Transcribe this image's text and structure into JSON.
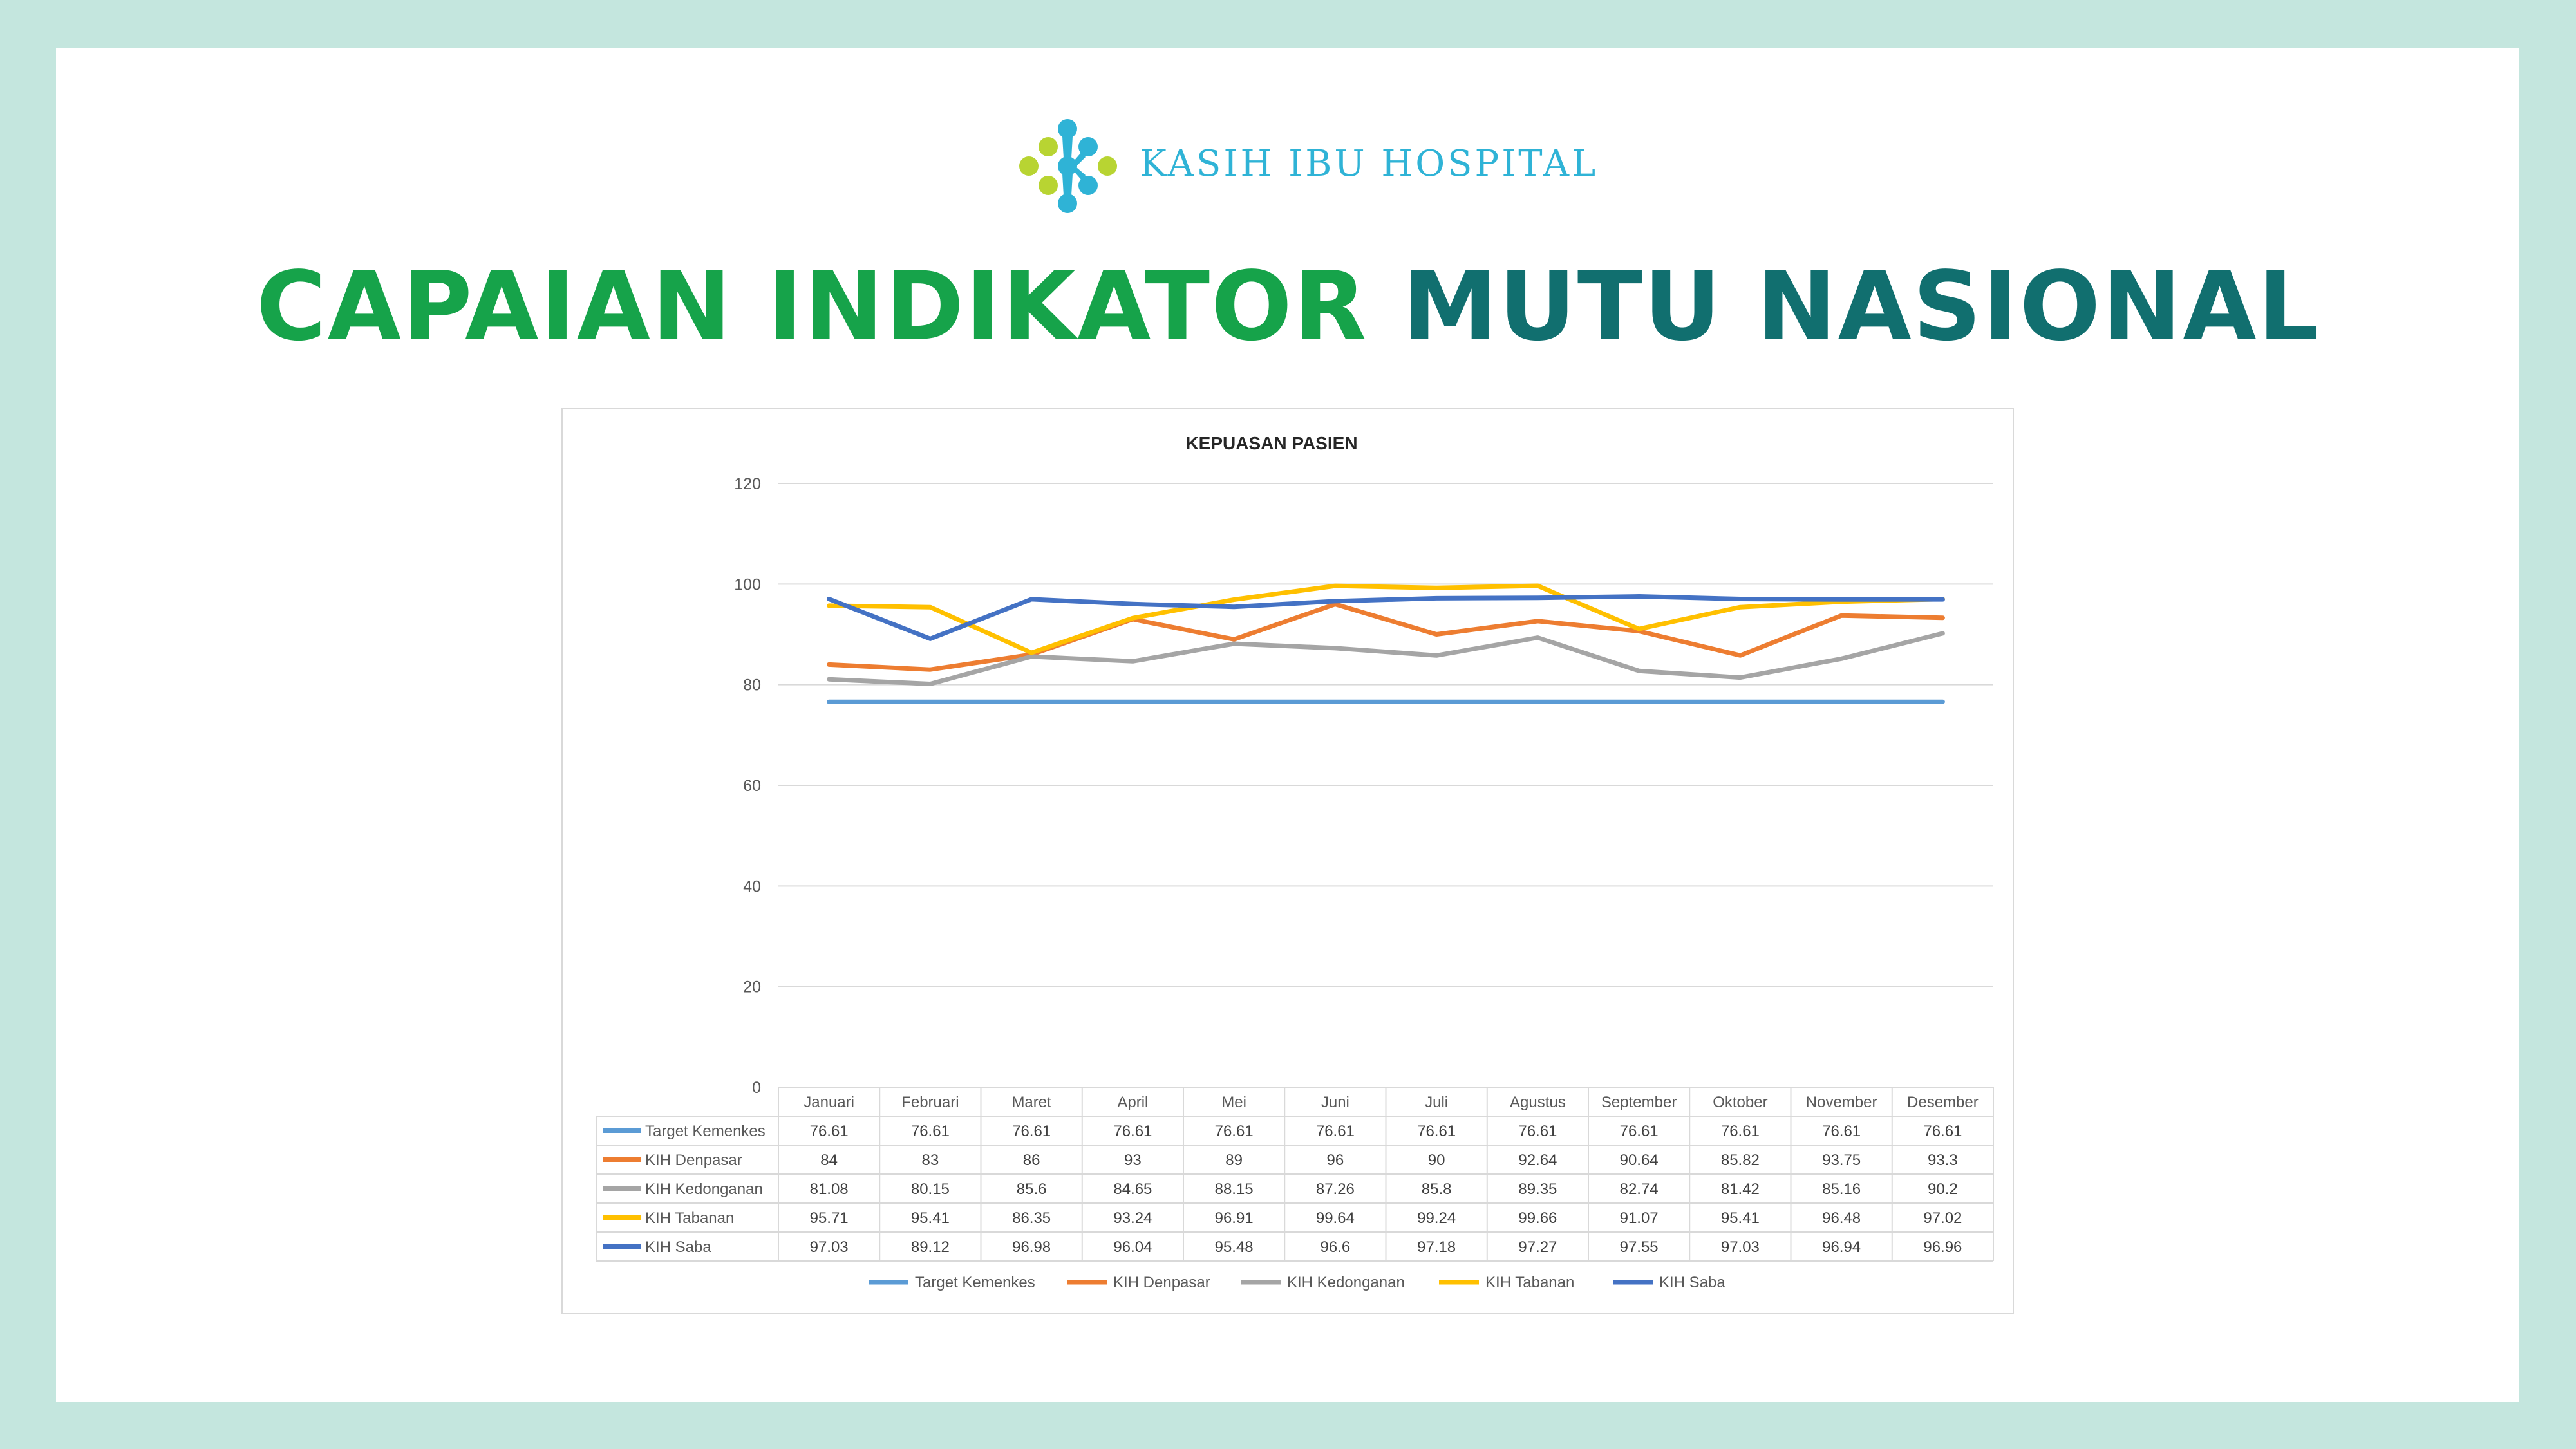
{
  "brand": {
    "name": "KASIH IBU HOSPITAL",
    "logo_icon": "kasih-ibu-molecule-logo",
    "colors": {
      "blue": "#2fb3d6",
      "lime": "#b8d432"
    }
  },
  "headline": {
    "part1": "CAPAIAN INDIKATOR",
    "part2": "MUTU NASIONAL",
    "color1": "#16a34a",
    "color2": "#116f6f"
  },
  "chart_data": {
    "type": "line",
    "title": "KEPUASAN PASIEN",
    "xlabel": "",
    "ylabel": "",
    "ylim": [
      0,
      120
    ],
    "yticks": [
      0,
      20,
      40,
      60,
      80,
      100,
      120
    ],
    "grid": true,
    "legend_position": "bottom",
    "data_table": true,
    "categories": [
      "Januari",
      "Februari",
      "Maret",
      "April",
      "Mei",
      "Juni",
      "Juli",
      "Agustus",
      "September",
      "Oktober",
      "November",
      "Desember"
    ],
    "series": [
      {
        "name": "Target Kemenkes",
        "color": "#5b9bd5",
        "values": [
          "76.61",
          "76.61",
          "76.61",
          "76.61",
          "76.61",
          "76.61",
          "76.61",
          "76.61",
          "76.61",
          "76.61",
          "76.61",
          "76.61"
        ]
      },
      {
        "name": "KIH Denpasar",
        "color": "#ed7d31",
        "values": [
          "84",
          "83",
          "86",
          "93",
          "89",
          "96",
          "90",
          "92.64",
          "90.64",
          "85.82",
          "93.75",
          "93.3"
        ]
      },
      {
        "name": "KIH Kedonganan",
        "color": "#a5a5a5",
        "values": [
          "81.08",
          "80.15",
          "85.6",
          "84.65",
          "88.15",
          "87.26",
          "85.8",
          "89.35",
          "82.74",
          "81.42",
          "85.16",
          "90.2"
        ]
      },
      {
        "name": "KIH Tabanan",
        "color": "#ffc000",
        "values": [
          "95.71",
          "95.41",
          "86.35",
          "93.24",
          "96.91",
          "99.64",
          "99.24",
          "99.66",
          "91.07",
          "95.41",
          "96.48",
          "97.02"
        ]
      },
      {
        "name": "KIH Saba",
        "color": "#4472c4",
        "values": [
          "97.03",
          "89.12",
          "96.98",
          "96.04",
          "95.48",
          "96.6",
          "97.18",
          "97.27",
          "97.55",
          "97.03",
          "96.94",
          "96.96"
        ]
      }
    ]
  }
}
